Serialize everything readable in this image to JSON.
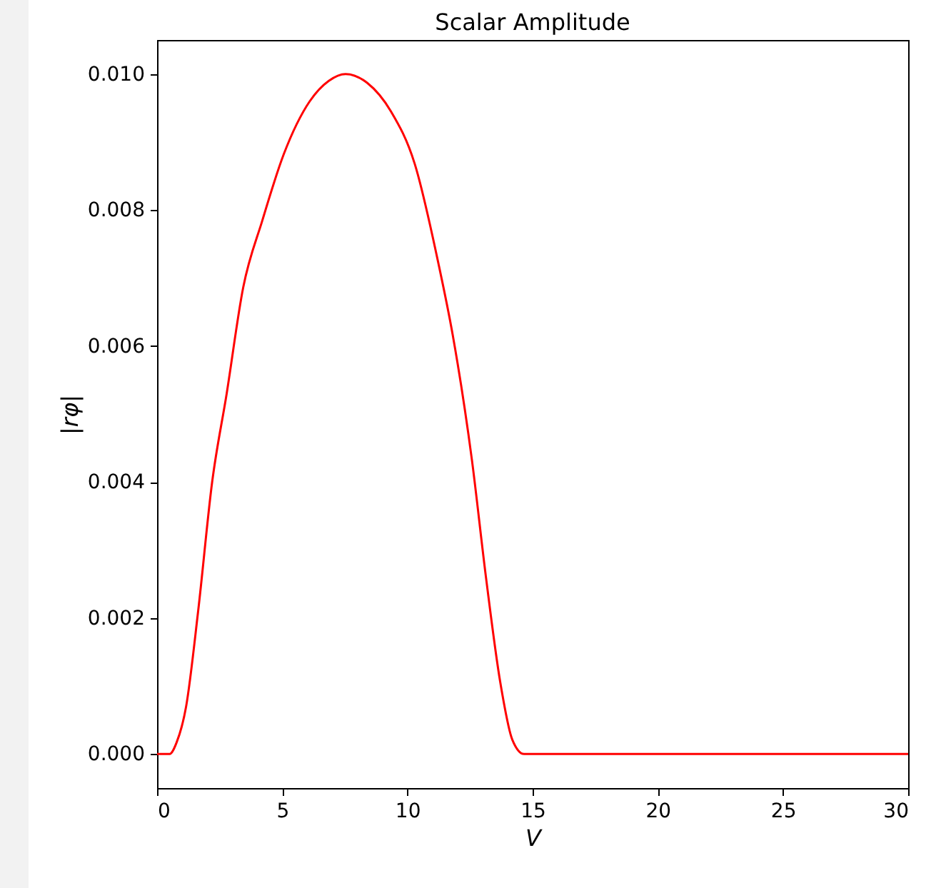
{
  "chart_data": {
    "type": "line",
    "title": "Scalar Amplitude",
    "xlabel": "V",
    "ylabel": "|rφ|",
    "xlim": [
      0,
      30
    ],
    "ylim": [
      -0.0005,
      0.0105
    ],
    "xticks": [
      0,
      5,
      10,
      15,
      20,
      25,
      30
    ],
    "yticks": [
      {
        "value": 0,
        "label": "0.000"
      },
      {
        "value": 0.002,
        "label": "0.002"
      },
      {
        "value": 0.004,
        "label": "0.004"
      },
      {
        "value": 0.006,
        "label": "0.006"
      },
      {
        "value": 0.008,
        "label": "0.008"
      },
      {
        "value": 0.01,
        "label": "0.010"
      }
    ],
    "grid": false,
    "marker": "none",
    "line_style": "solid",
    "x": [
      0,
      0.5,
      0.78,
      1.16,
      1.64,
      2.2,
      2.78,
      3.44,
      4.2,
      5.06,
      6.1,
      6.86,
      7.53,
      8.39,
      9.34,
      10.29,
      11.24,
      11.81,
      12.57,
      13.14,
      13.71,
      14.19,
      14.66,
      30
    ],
    "series": [
      {
        "color": "#ff0000",
        "values": [
          0,
          0,
          0.00017,
          0.0007,
          0.0021,
          0.004,
          0.0053,
          0.00686,
          0.00784,
          0.00882,
          0.0096,
          0.0099,
          0.01,
          0.00987,
          0.00945,
          0.00868,
          0.00721,
          0.00616,
          0.00434,
          0.00259,
          0.00105,
          0.00021,
          0,
          0
        ]
      }
    ]
  }
}
